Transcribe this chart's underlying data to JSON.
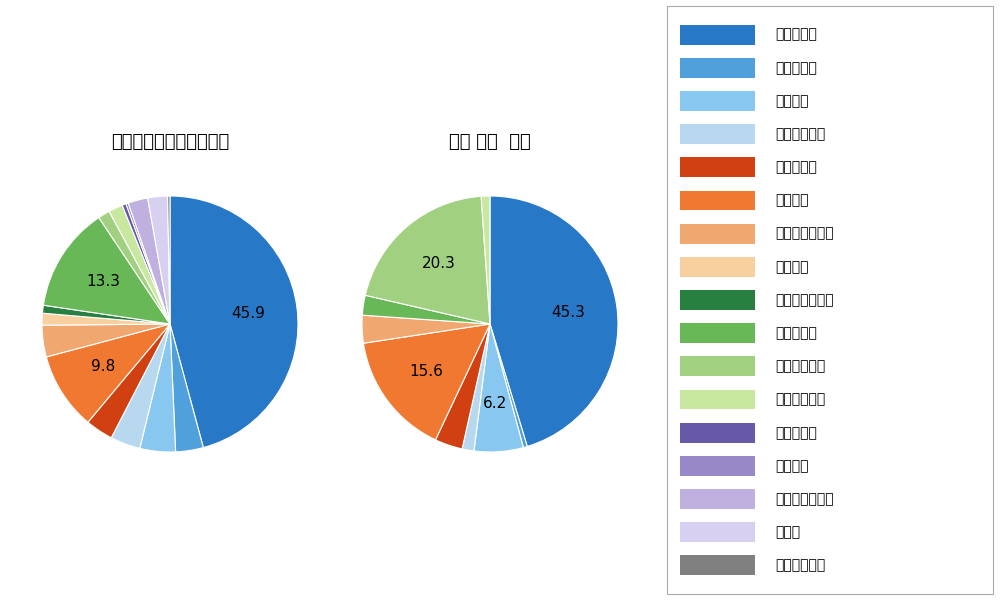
{
  "left_title": "パ・リーグ全プレイヤー",
  "right_title": "辰己 涼介  選手",
  "left_slices": [
    {
      "label": "ストレート",
      "value": 45.9,
      "color": "#2878c8"
    },
    {
      "label": "ツーシーム",
      "value": 3.5,
      "color": "#50a0dc"
    },
    {
      "label": "シュート",
      "value": 4.5,
      "color": "#88c8f0"
    },
    {
      "label": "カットボール",
      "value": 3.8,
      "color": "#b8d8f0"
    },
    {
      "label": "スプリット",
      "value": 3.5,
      "color": "#d04010"
    },
    {
      "label": "フォーク",
      "value": 9.8,
      "color": "#f07830"
    },
    {
      "label": "チェンジアップ",
      "value": 4.0,
      "color": "#f0a870"
    },
    {
      "label": "シンカー",
      "value": 1.5,
      "color": "#f8d0a0"
    },
    {
      "label": "高速スライダー",
      "value": 1.0,
      "color": "#288040"
    },
    {
      "label": "スライダー",
      "value": 13.3,
      "color": "#68b858"
    },
    {
      "label": "縦スライダー",
      "value": 1.5,
      "color": "#a0d080"
    },
    {
      "label": "パワーカーブ",
      "value": 1.8,
      "color": "#c8e8a0"
    },
    {
      "label": "スクリュー",
      "value": 0.5,
      "color": "#6858a8"
    },
    {
      "label": "ナックル",
      "value": 0.3,
      "color": "#9888c8"
    },
    {
      "label": "ナックルカーブ",
      "value": 2.5,
      "color": "#c0b0e0"
    },
    {
      "label": "カーブ",
      "value": 2.5,
      "color": "#d8d0f0"
    },
    {
      "label": "スローカーブ",
      "value": 0.3,
      "color": "#808080"
    }
  ],
  "right_slices": [
    {
      "label": "ストレート",
      "value": 45.3,
      "color": "#2878c8"
    },
    {
      "label": "ツーシーム",
      "value": 0.5,
      "color": "#50a0dc"
    },
    {
      "label": "シュート",
      "value": 6.2,
      "color": "#88c8f0"
    },
    {
      "label": "カットボール",
      "value": 1.5,
      "color": "#b8d8f0"
    },
    {
      "label": "スプリット",
      "value": 3.5,
      "color": "#d04010"
    },
    {
      "label": "フォーク",
      "value": 15.6,
      "color": "#f07830"
    },
    {
      "label": "チェンジアップ",
      "value": 3.5,
      "color": "#f0a870"
    },
    {
      "label": "スライダー",
      "value": 2.5,
      "color": "#68b858"
    },
    {
      "label": "縦スライダー",
      "value": 20.3,
      "color": "#a0d080"
    },
    {
      "label": "パワーカーブ",
      "value": 1.1,
      "color": "#c8e8a0"
    }
  ],
  "legend_items": [
    {
      "label": "ストレート",
      "color": "#2878c8"
    },
    {
      "label": "ツーシーム",
      "color": "#50a0dc"
    },
    {
      "label": "シュート",
      "color": "#88c8f0"
    },
    {
      "label": "カットボール",
      "color": "#b8d8f0"
    },
    {
      "label": "スプリット",
      "color": "#d04010"
    },
    {
      "label": "フォーク",
      "color": "#f07830"
    },
    {
      "label": "チェンジアップ",
      "color": "#f0a870"
    },
    {
      "label": "シンカー",
      "color": "#f8d0a0"
    },
    {
      "label": "高速スライダー",
      "color": "#288040"
    },
    {
      "label": "スライダー",
      "color": "#68b858"
    },
    {
      "label": "縦スライダー",
      "color": "#a0d080"
    },
    {
      "label": "パワーカーブ",
      "color": "#c8e8a0"
    },
    {
      "label": "スクリュー",
      "color": "#6858a8"
    },
    {
      "label": "ナックル",
      "color": "#9888c8"
    },
    {
      "label": "ナックルカーブ",
      "color": "#c0b0e0"
    },
    {
      "label": "カーブ",
      "color": "#d8d0f0"
    },
    {
      "label": "スローカーブ",
      "color": "#808080"
    }
  ],
  "label_threshold": 5.0,
  "background_color": "#ffffff",
  "title_fontsize": 13,
  "legend_fontsize": 10,
  "label_fontsize": 11
}
